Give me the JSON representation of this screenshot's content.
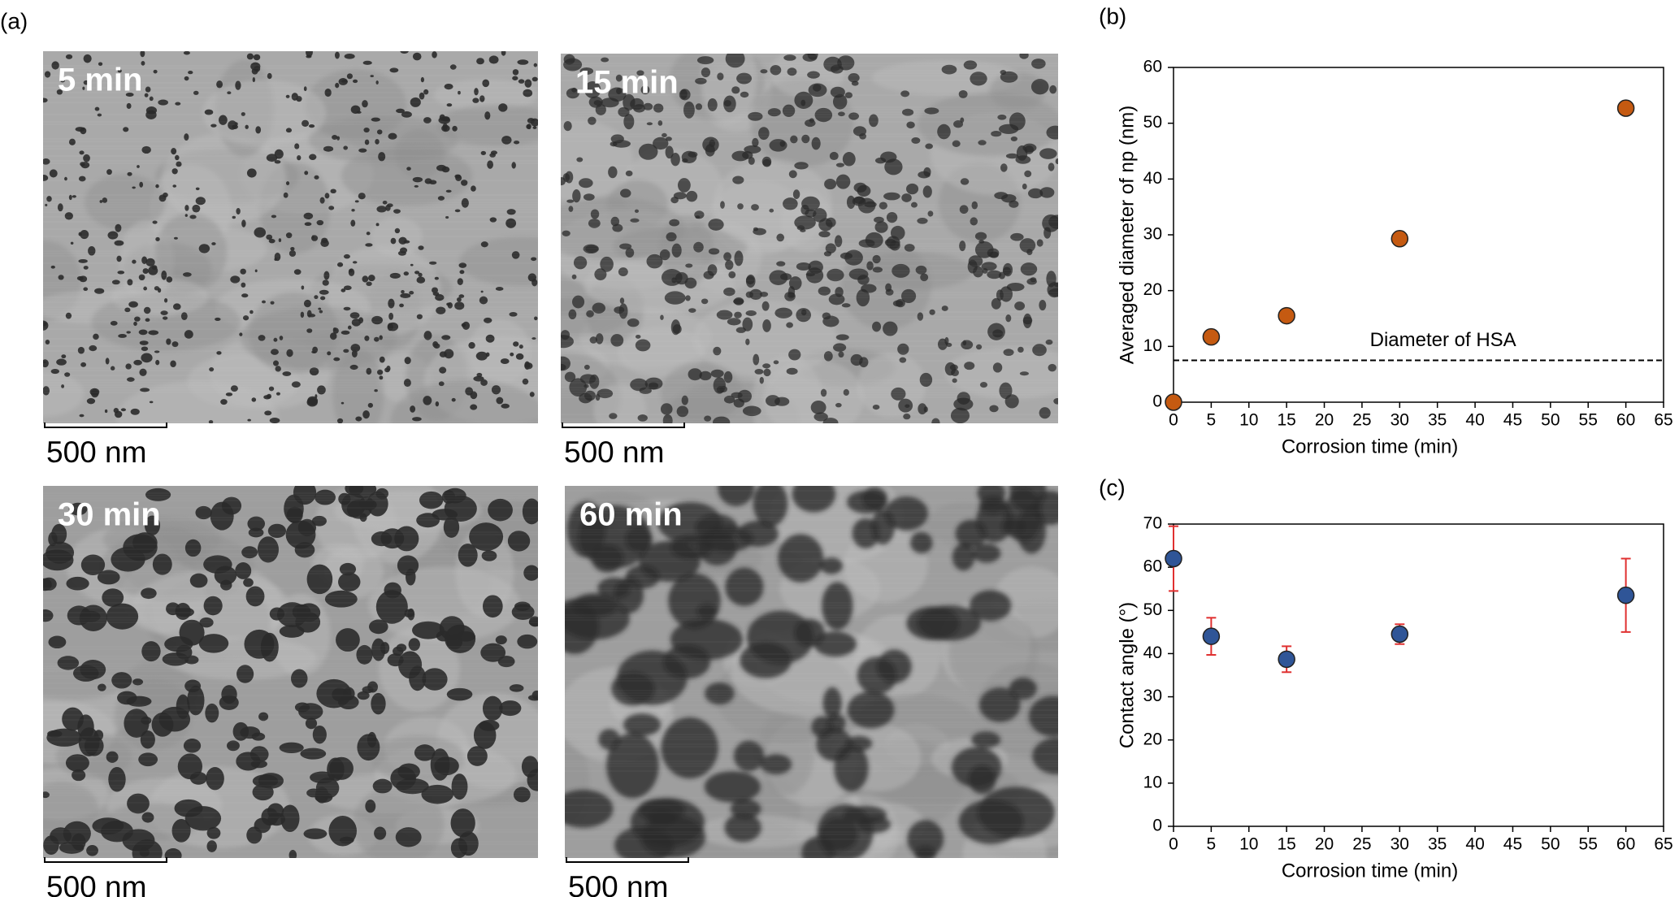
{
  "panel_labels": [
    "(a)",
    "(b)",
    "(c)"
  ],
  "images": [
    {
      "label": "5 min",
      "scale_bar": "500 nm"
    },
    {
      "label": "15 min",
      "scale_bar": "500 nm"
    },
    {
      "label": "30 min",
      "scale_bar": "500 nm"
    },
    {
      "label": "60 min",
      "scale_bar": "500 nm"
    }
  ],
  "chart_data": [
    {
      "type": "scatter",
      "x_label": "Corrosion time (min)",
      "y_label": "Averaged diameter of np  (nm)",
      "x": [
        0,
        5,
        15,
        30,
        60
      ],
      "series": [
        {
          "color": "#c55a11",
          "values": [
            0,
            11.7,
            15.5,
            29.3,
            52.7
          ]
        }
      ],
      "xlim": [
        0,
        65
      ],
      "xticks": [
        0,
        5,
        10,
        15,
        20,
        25,
        30,
        35,
        40,
        45,
        50,
        55,
        60,
        65
      ],
      "ylim": [
        0,
        60
      ],
      "yticks": [
        0,
        10,
        20,
        30,
        40,
        50,
        60
      ],
      "hline": {
        "value": 7.5,
        "label": "Diameter of HSA"
      }
    },
    {
      "type": "scatter",
      "x_label": "Corrosion time (min)",
      "y_label": "Contact angle  (°)",
      "x": [
        0,
        5,
        15,
        30,
        60
      ],
      "series": [
        {
          "color": "#2f5597",
          "error_color": "#e03030",
          "values": [
            62,
            44,
            38.7,
            44.5,
            53.5
          ],
          "errors": [
            7.5,
            4.3,
            3,
            2.3,
            8.5
          ]
        }
      ],
      "xlim": [
        0,
        65
      ],
      "xticks": [
        0,
        5,
        10,
        15,
        20,
        25,
        30,
        35,
        40,
        45,
        50,
        55,
        60,
        65
      ],
      "ylim": [
        0,
        70
      ],
      "yticks": [
        0,
        10,
        20,
        30,
        40,
        50,
        60,
        70
      ]
    }
  ]
}
